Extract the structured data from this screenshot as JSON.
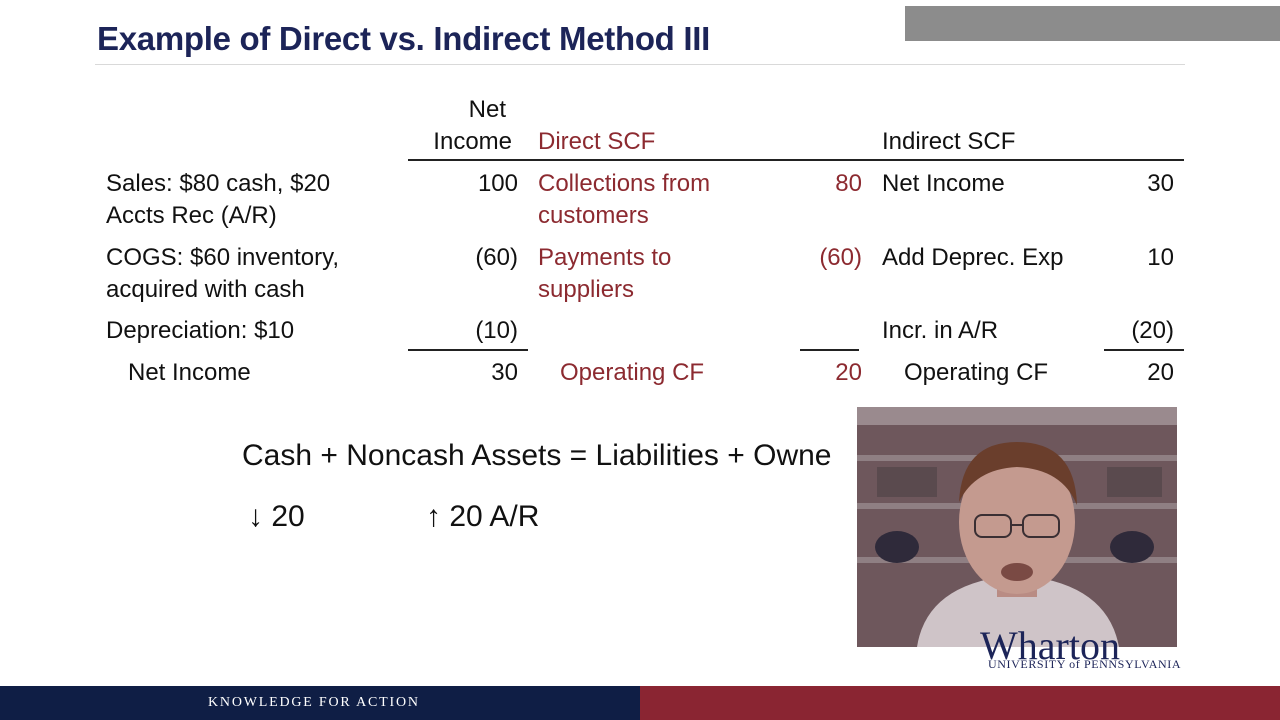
{
  "title": "Example of Direct vs. Indirect Method III",
  "table": {
    "header_net_line1": "Net",
    "header_net_line2": "Income",
    "header_direct": "Direct SCF",
    "header_indirect": "Indirect SCF",
    "rows": [
      {
        "desc1": "Sales: $80 cash, $20",
        "desc2": "Accts Rec (A/R)",
        "ni": "100",
        "direct_label1": "Collections from",
        "direct_label2": "customers",
        "direct_value": "80",
        "indirect_label": "Net Income",
        "indirect_value": "30"
      },
      {
        "desc1": "COGS: $60 inventory,",
        "desc2": "acquired with cash",
        "ni": "(60)",
        "direct_label1": "Payments to",
        "direct_label2": "suppliers",
        "direct_value": "(60)",
        "indirect_label": "Add Deprec. Exp",
        "indirect_value": "10"
      },
      {
        "desc1": "Depreciation: $10",
        "ni": "(10)",
        "indirect_label": "Incr. in A/R",
        "indirect_value": "(20)"
      }
    ],
    "total": {
      "desc": "Net Income",
      "ni": "30",
      "direct_label": "Operating CF",
      "direct_value": "20",
      "indirect_label": "Operating CF",
      "indirect_value": "20"
    }
  },
  "equation": {
    "text": "Cash + Noncash Assets = Liabilities + Owne",
    "cash_change": "↓ 20",
    "ar_change": "↑ 20 A/R"
  },
  "video": {
    "person": "presenter-webcam"
  },
  "logo": {
    "name": "Wharton",
    "sub": "UNIVERSITY of PENNSYLVANIA"
  },
  "footer": {
    "tagline": "KNOWLEDGE FOR ACTION"
  },
  "colors": {
    "title": "#1c2458",
    "accent": "#8c2a30",
    "footer_left": "#0f1e45",
    "footer_right": "#8a2532"
  }
}
